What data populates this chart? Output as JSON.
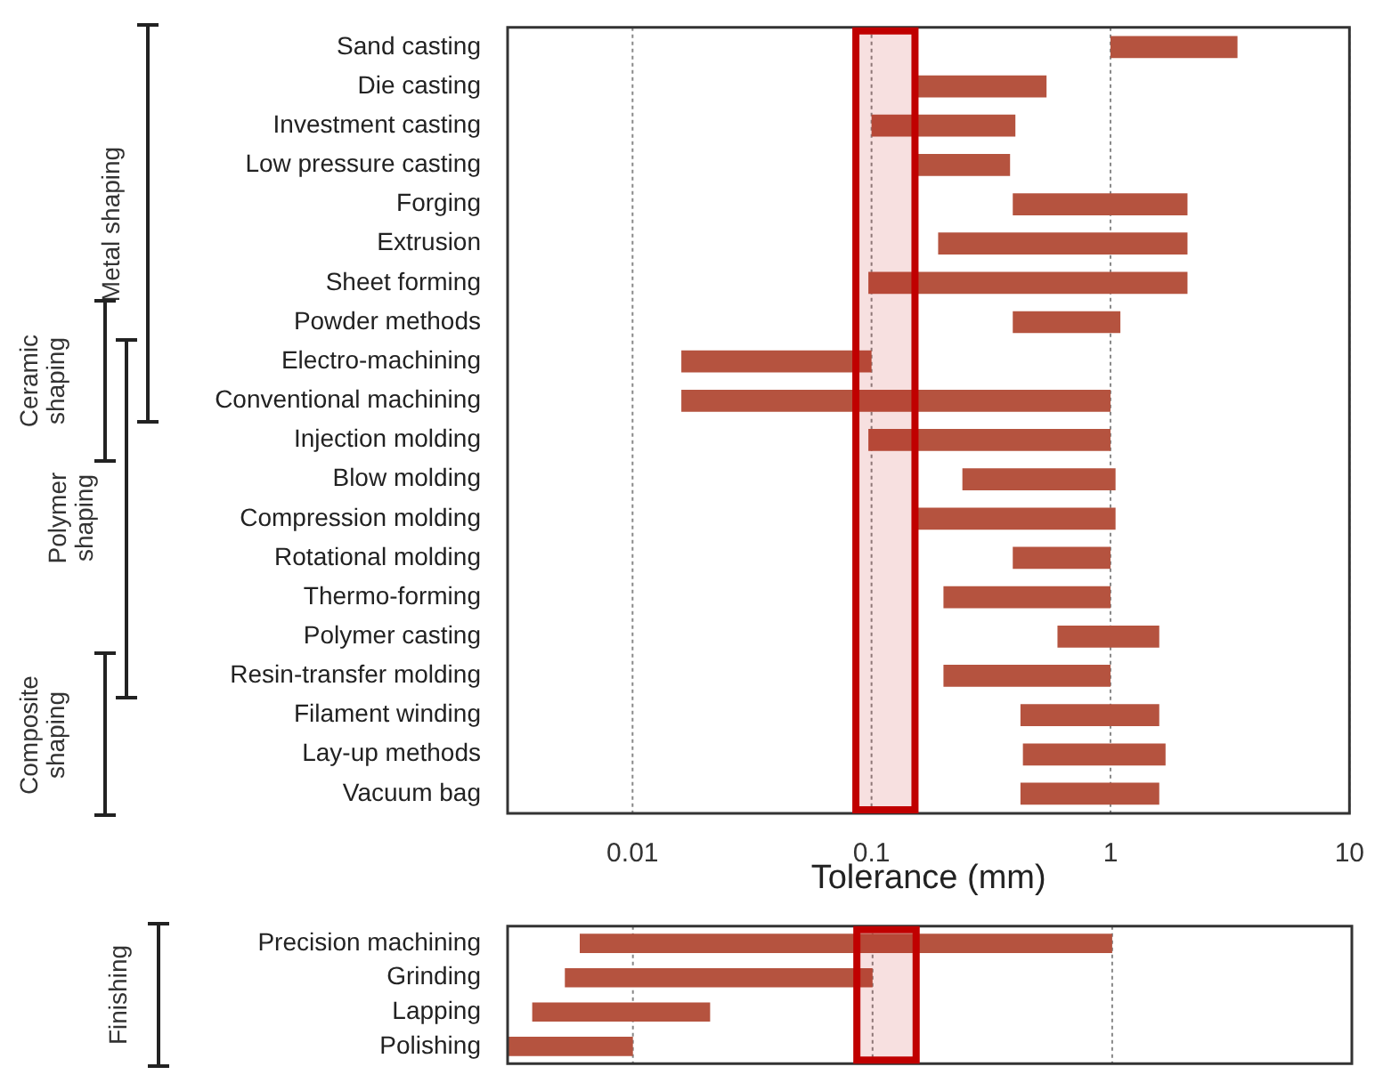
{
  "chart_data": [
    {
      "type": "bar",
      "orientation": "horizontal",
      "xlabel": "Tolerance (mm)",
      "log": "x",
      "grid": "x",
      "color": "#b5533f",
      "categories": [
        "Sand casting",
        "Die casting",
        "Investment casting",
        "Low pressure casting",
        "Forging",
        "Extrusion",
        "Sheet forming",
        "Powder methods",
        "Electro-machining",
        "Conventional machining",
        "Injection molding",
        "Blow molding",
        "Compression molding",
        "Rotational molding",
        "Thermo-forming",
        "Polymer casting",
        "Resin-transfer molding",
        "Filament winding",
        "Lay-up methods",
        "Vacuum bag"
      ],
      "base": [
        1,
        0.155,
        0.1,
        0.155,
        0.39,
        0.19,
        0.097,
        0.39,
        0.016,
        0.016,
        0.097,
        0.24,
        0.155,
        0.39,
        0.2,
        0.6,
        0.2,
        0.42,
        0.43,
        0.42
      ],
      "values": [
        2.4,
        0.385,
        0.3,
        0.225,
        1.71,
        1.91,
        2.003,
        0.71,
        0.084,
        0.984,
        0.903,
        0.81,
        0.895,
        0.61,
        0.8,
        1.0,
        0.8,
        1.18,
        1.27,
        1.18
      ],
      "xlim": [
        0.003,
        10
      ],
      "xticks": [
        0.01,
        0.1,
        1,
        10
      ],
      "bands": [
        {
          "axis": "x",
          "from": 0.086,
          "to": 0.152,
          "color": "#c00000"
        }
      ],
      "annotations": [
        "Metal shaping",
        "Ceramic shaping",
        "Polymer shaping",
        "Composite shaping"
      ]
    },
    {
      "type": "bar",
      "orientation": "horizontal",
      "log": "x",
      "grid": "x",
      "color": "#b5533f",
      "tick_labels": "y",
      "categories": [
        "Precision machining",
        "Grinding",
        "Lapping",
        "Polishing"
      ],
      "base": [
        0.006,
        0.0052,
        0.0038,
        0.003
      ],
      "values": [
        0.994,
        0.0948,
        0.0172,
        0.007
      ],
      "xlim": [
        0.003,
        10
      ],
      "xticks": [
        0.01,
        0.1,
        1,
        10
      ],
      "bands": [
        {
          "axis": "x",
          "from": 0.086,
          "to": 0.152,
          "color": "#c00000"
        }
      ],
      "annotations": [
        "Finishing"
      ]
    }
  ]
}
